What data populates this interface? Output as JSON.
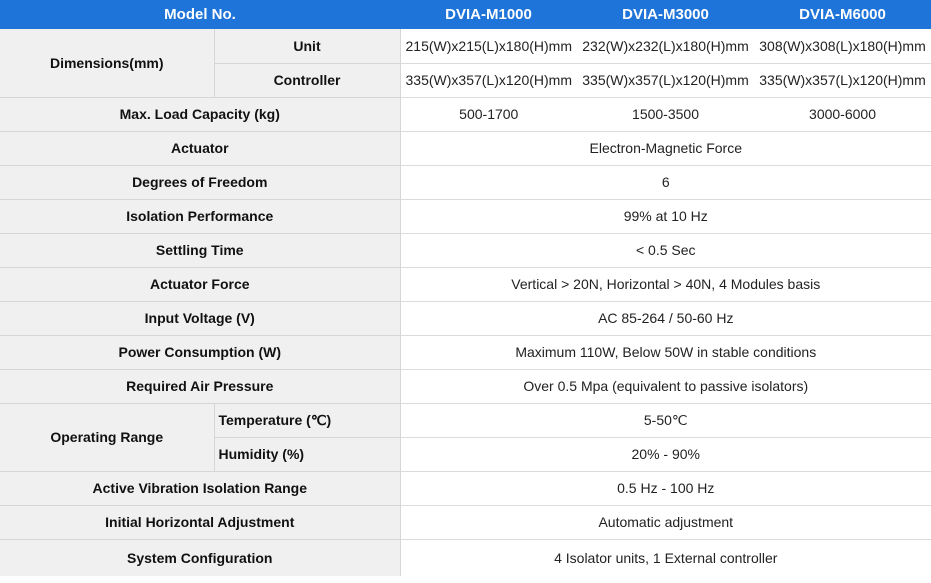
{
  "header": {
    "model_label": "Model No.",
    "models": [
      "DVIA-M1000",
      "DVIA-M3000",
      "DVIA-M6000"
    ]
  },
  "rows": {
    "dimensions": {
      "label": "Dimensions(mm)",
      "unit_label": "Unit",
      "unit_values": [
        "215(W)x215(L)x180(H)mm",
        "232(W)x232(L)x180(H)mm",
        "308(W)x308(L)x180(H)mm"
      ],
      "controller_label": "Controller",
      "controller_values": [
        "335(W)x357(L)x120(H)mm",
        "335(W)x357(L)x120(H)mm",
        "335(W)x357(L)x120(H)mm"
      ]
    },
    "max_load": {
      "label": "Max. Load Capacity (kg)",
      "values": [
        "500-1700",
        "1500-3500",
        "3000-6000"
      ]
    },
    "actuator": {
      "label": "Actuator",
      "value": "Electron-Magnetic Force"
    },
    "dof": {
      "label": "Degrees of Freedom",
      "value": "6"
    },
    "isolation": {
      "label": "Isolation Performance",
      "value": "99% at 10 Hz"
    },
    "settling": {
      "label": "Settling Time",
      "value": "< 0.5 Sec"
    },
    "actuator_force": {
      "label": "Actuator Force",
      "value": "Vertical > 20N, Horizontal > 40N, 4 Modules basis"
    },
    "input_voltage": {
      "label": "Input Voltage (V)",
      "value": "AC 85-264 / 50-60 Hz"
    },
    "power": {
      "label": "Power Consumption (W)",
      "value": "Maximum 110W, Below 50W in stable conditions"
    },
    "air": {
      "label": "Required Air Pressure",
      "value": "Over 0.5 Mpa (equivalent to passive isolators)"
    },
    "operating": {
      "label": "Operating Range",
      "temp_label": "Temperature (℃)",
      "temp_value": "5-50℃",
      "humidity_label": "Humidity (%)",
      "humidity_value": "20% - 90%"
    },
    "active_range": {
      "label": "Active Vibration Isolation Range",
      "value": "0.5 Hz - 100 Hz"
    },
    "horizontal": {
      "label": "Initial Horizontal Adjustment",
      "value": "Automatic adjustment"
    },
    "system": {
      "label": "System Configuration",
      "value": "4 Isolator units, 1 External controller"
    }
  }
}
